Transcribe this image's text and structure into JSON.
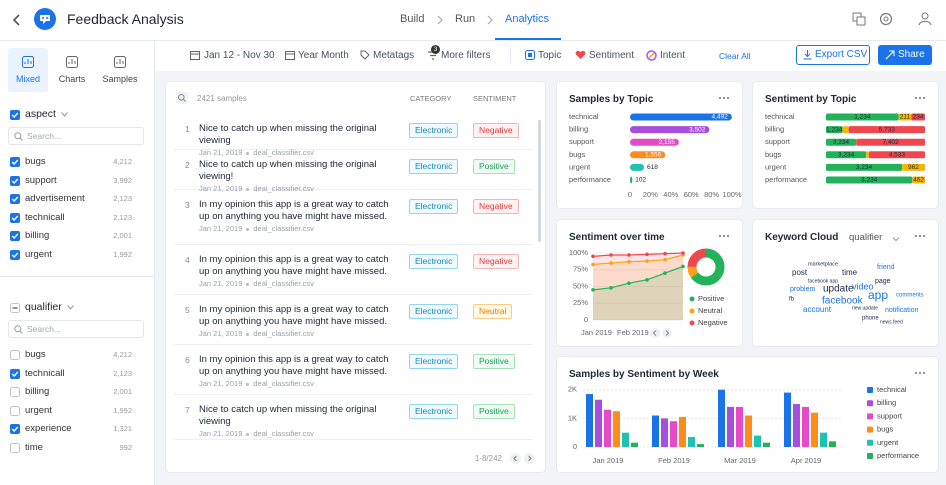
{
  "header": {
    "title": "Feedback Analysis",
    "tabs": [
      "Build",
      "Run",
      "Analytics"
    ],
    "active_tab": 2
  },
  "toolbar": {
    "date_range": "Jan 12 - Nov 30",
    "granularity": "Year Month",
    "metatags": "Metatags",
    "more_filters": "More filters",
    "filter_count": 3,
    "topic": "Topic",
    "sentiment": "Sentiment",
    "intent": "Intent",
    "clear_all": "Clear All",
    "export": "Export CSV",
    "share": "Share"
  },
  "sidebar": {
    "views": [
      "Mixed",
      "Charts",
      "Samples"
    ],
    "active_view": 0,
    "filters": [
      {
        "title": "aspect",
        "all_selected": true,
        "search": "Search...",
        "items": [
          {
            "label": "bugs",
            "count": "4,212",
            "checked": true
          },
          {
            "label": "support",
            "count": "3,992",
            "checked": true
          },
          {
            "label": "advertisement",
            "count": "2,123",
            "checked": true
          },
          {
            "label": "technicall",
            "count": "2,123",
            "checked": true
          },
          {
            "label": "billing",
            "count": "2,001",
            "checked": true
          },
          {
            "label": "urgent",
            "count": "1,992",
            "checked": true
          }
        ]
      },
      {
        "title": "qualifier",
        "all_selected": false,
        "search": "Search...",
        "items": [
          {
            "label": "bugs",
            "count": "4,212",
            "checked": false
          },
          {
            "label": "technicall",
            "count": "2,123",
            "checked": true
          },
          {
            "label": "billing",
            "count": "2,001",
            "checked": false
          },
          {
            "label": "urgent",
            "count": "1,992",
            "checked": false
          },
          {
            "label": "experience",
            "count": "1,321",
            "checked": true
          },
          {
            "label": "time",
            "count": "992",
            "checked": false
          }
        ]
      }
    ]
  },
  "samples": {
    "count": "2421 samples",
    "columns": [
      "CATEGORY",
      "SENTIMENT"
    ],
    "pagination": "1-8/242",
    "tag_colors": {
      "Electronic": {
        "fg": "#1b86b3",
        "bg": "#eefaff",
        "border": "#93d5ea"
      },
      "Negative": {
        "fg": "#d93a3a",
        "bg": "#fff1f1",
        "border": "#f3b6b6"
      },
      "Positive": {
        "fg": "#1e9e54",
        "bg": "#effaf3",
        "border": "#a6e2bd"
      },
      "Neutral": {
        "fg": "#e08600",
        "bg": "#fff6e6",
        "border": "#f6cf86"
      }
    },
    "rows": [
      {
        "index": 1,
        "text": "Nice to catch up when missing the original viewing",
        "date": "Jan 21, 2019",
        "file": "deal_classifier.csv",
        "category": "Electronic",
        "sentiment": "Negative"
      },
      {
        "index": 2,
        "text": "Nice to catch up when missing the original viewing!",
        "date": "Jan 21, 2019",
        "file": "deal_classifier.csv",
        "category": "Electronic",
        "sentiment": "Positive"
      },
      {
        "index": 3,
        "text": "In my opinion this app is a great way to catch up on anything you have might have missed.",
        "date": "Jan 21, 2019",
        "file": "deal_classifier.csv",
        "category": "Electronic",
        "sentiment": "Negative"
      },
      {
        "index": 4,
        "text": "In my opinion this app is a great way to catch up on anything you have might have missed.",
        "date": "Jan 21, 2019",
        "file": "deal_classifier.csv",
        "category": "Electronic",
        "sentiment": "Negative"
      },
      {
        "index": 5,
        "text": "In my opinion this app is a great way to catch up on anything you have might have missed.",
        "date": "Jan 21, 2019",
        "file": "deal_classifier.csv",
        "category": "Electronic",
        "sentiment": "Neutral"
      },
      {
        "index": 6,
        "text": "In my opinion this app is a great way to catch up on anything you have might have missed.",
        "date": "Jan 21, 2019",
        "file": "deal_classifier.csv",
        "category": "Electronic",
        "sentiment": "Positive"
      },
      {
        "index": 7,
        "text": "Nice to catch up when missing the original viewing",
        "date": "Jan 21, 2019",
        "file": "deal_classifier.csv",
        "category": "Electronic",
        "sentiment": "Positive"
      }
    ]
  },
  "cards": {
    "topic": {
      "type": "hbar",
      "title": "Samples by Topic",
      "categories": [
        "technical",
        "billing",
        "support",
        "bugs",
        "urgent",
        "performance"
      ],
      "values": [
        4492,
        3502,
        2155,
        1556,
        618,
        102
      ],
      "value_labels": [
        "4,492",
        "3,502",
        "2,155",
        "1,556",
        "618",
        "102"
      ],
      "colors": [
        "#1a73e8",
        "#a64ee0",
        "#e64ac8",
        "#ff8c1a",
        "#1ec2b0",
        "#22b35a"
      ],
      "xlim": [
        0,
        4500
      ],
      "xticks": [
        0,
        {
          "value": 900,
          "label": "20%"
        },
        {
          "value": 1800,
          "label": "40%"
        },
        {
          "value": 2700,
          "label": "60%"
        },
        {
          "value": 3600,
          "label": "80%"
        },
        {
          "value": 4500,
          "label": "100%"
        }
      ]
    },
    "sentiment_topic": {
      "type": "stacked-hbar-percent",
      "title": "Sentiment by Topic",
      "categories": [
        "technical",
        "billing",
        "support",
        "bugs",
        "urgent",
        "performance"
      ],
      "series": [
        {
          "color": "#22b35a",
          "values": [
            1234,
            1234,
            3234,
            3234,
            3234,
            3234
          ],
          "value_labels": [
            "1,234",
            "1,234",
            "3,234",
            "3,234",
            "3,234",
            "3,234"
          ]
        },
        {
          "color": "#f5b800",
          "values": [
            211,
            462,
            12,
            211,
            962,
            462
          ]
        },
        {
          "color": "#f0474e",
          "values": [
            234,
            5733,
            7402,
            4533,
            12,
            12
          ],
          "value_labels": [
            "234",
            "5,733",
            "7,402",
            "4,533",
            "12",
            "12"
          ]
        }
      ]
    },
    "over_time": {
      "type": "line",
      "title": "Sentiment over time",
      "categories": [
        "Jan 2019",
        null,
        "Feb 2019",
        null,
        null,
        null
      ],
      "ylim": [
        0,
        100
      ],
      "yticks": [
        0,
        {
          "value": 25,
          "label": "25%"
        },
        {
          "value": 50,
          "label": "50%"
        },
        {
          "value": 75,
          "label": "75%"
        },
        {
          "value": 100,
          "label": "100%"
        }
      ],
      "series": [
        {
          "name": "Positive",
          "color": "#22b35a",
          "values": [
            45,
            48,
            55,
            60,
            70,
            80
          ]
        },
        {
          "name": "Neutral",
          "color": "#ff9f1a",
          "values": [
            83,
            85,
            87,
            88,
            90,
            97
          ]
        },
        {
          "name": "Negative",
          "color": "#f0474e",
          "values": [
            95,
            97,
            97,
            98,
            99,
            100
          ]
        }
      ],
      "donut": [
        65,
        10,
        25
      ]
    },
    "keywords": {
      "title": "Keyword Cloud",
      "selector": "qualifier",
      "words": [
        "marketplace",
        "friend",
        "post",
        "time",
        "facebook app",
        "page",
        "problem",
        "update",
        "video",
        "app",
        "comments",
        "fb",
        "facebook",
        "account",
        "new update",
        "notification",
        "phone",
        "news feed"
      ]
    },
    "weekly": {
      "type": "grouped-bar",
      "title": "Samples by Sentiment by Week",
      "categories": [
        "Jan 2019",
        "Feb 2019",
        "Mar 2019",
        "Apr 2019"
      ],
      "ylim": [
        0,
        2200
      ],
      "yticks": [
        0,
        {
          "value": 1000,
          "label": "1K"
        },
        {
          "value": 2000,
          "label": "2K"
        }
      ],
      "series": [
        {
          "name": "technical",
          "color": "#1a73e8",
          "values": [
            1850,
            1100,
            2000,
            1900
          ]
        },
        {
          "name": "billing",
          "color": "#a64ee0",
          "values": [
            1650,
            1000,
            1400,
            1500
          ]
        },
        {
          "name": "support",
          "color": "#e64ac8",
          "values": [
            1300,
            900,
            1400,
            1400
          ]
        },
        {
          "name": "bugs",
          "color": "#ff8c1a",
          "values": [
            1250,
            1050,
            1100,
            1200
          ]
        },
        {
          "name": "urgent",
          "color": "#1ec2b0",
          "values": [
            500,
            350,
            400,
            500
          ]
        },
        {
          "name": "performance",
          "color": "#22b35a",
          "values": [
            150,
            100,
            150,
            200
          ]
        }
      ]
    }
  }
}
